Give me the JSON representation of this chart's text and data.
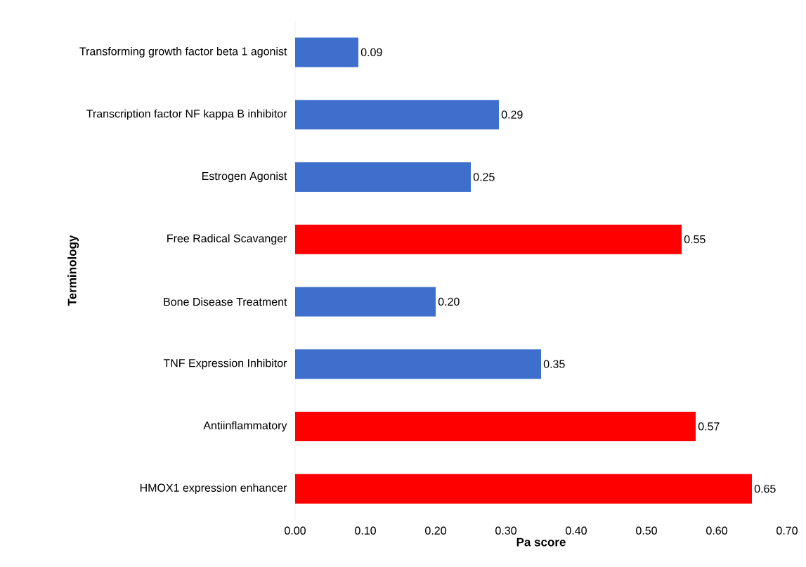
{
  "chart_data": {
    "type": "bar",
    "orientation": "horizontal",
    "xlabel": "Pa score",
    "ylabel": "Terminology",
    "categories": [
      "Transforming growth factor beta 1 agonist",
      "Transcription factor NF kappa B inhibitor",
      "Estrogen Agonist",
      "Free Radical Scavanger",
      "Bone Disease Treatment",
      "TNF Expression Inhibitor",
      "Antiinflammatory",
      "HMOX1 expression enhancer"
    ],
    "values": [
      0.09,
      0.29,
      0.25,
      0.55,
      0.2,
      0.35,
      0.57,
      0.65
    ],
    "value_labels": [
      "0.09",
      "0.29",
      "0.25",
      "0.55",
      "0.20",
      "0.35",
      "0.57",
      "0.65"
    ],
    "colors": [
      "#3f6fcc",
      "#3f6fcc",
      "#3f6fcc",
      "#ff0000",
      "#3f6fcc",
      "#3f6fcc",
      "#ff0000",
      "#ff0000"
    ],
    "xlim": [
      0,
      0.7
    ],
    "xticks": [
      {
        "value": 0,
        "label": "0.00"
      },
      {
        "value": 0.1,
        "label": "0.10"
      },
      {
        "value": 0.2,
        "label": "0.20"
      },
      {
        "value": 0.3,
        "label": "0.30"
      },
      {
        "value": 0.4,
        "label": "0.40"
      },
      {
        "value": 0.5,
        "label": "0.50"
      },
      {
        "value": 0.6,
        "label": "0.60"
      },
      {
        "value": 0.7,
        "label": "0.70"
      }
    ],
    "grid": false
  }
}
